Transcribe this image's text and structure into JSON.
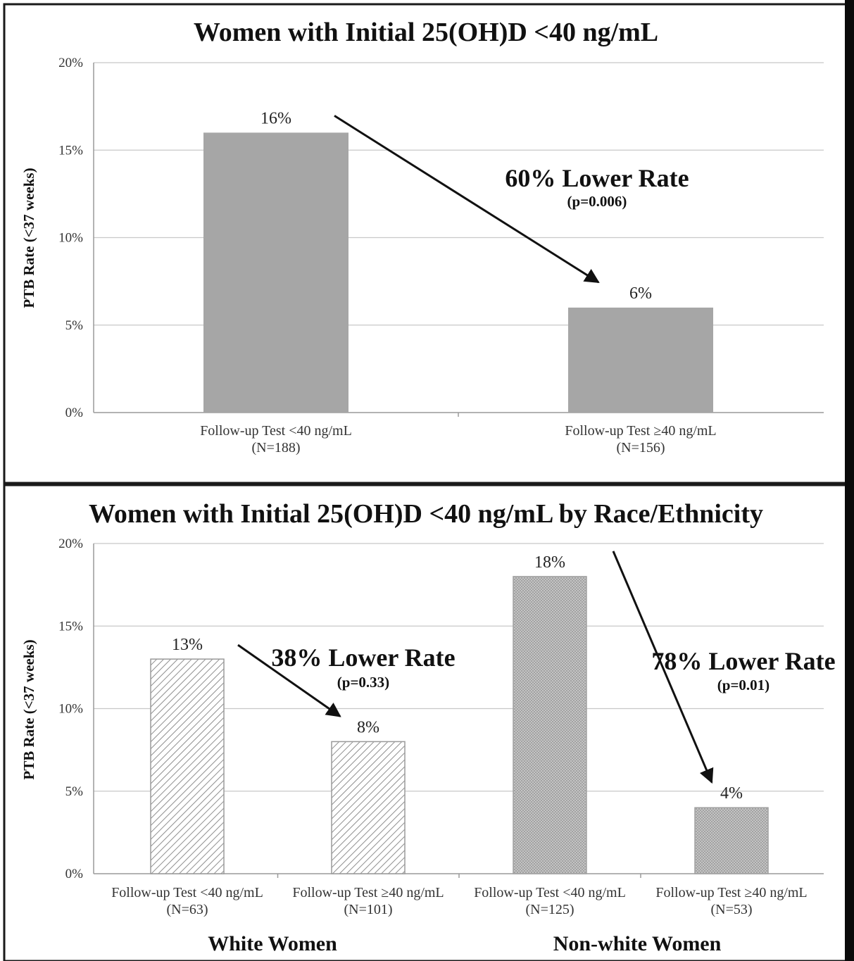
{
  "colors": {
    "solid": "#a6a6a6",
    "hatch": "#8f8f8f",
    "dots": "#9b9b9b"
  },
  "chart_data": [
    {
      "type": "bar",
      "title": "Women with Initial 25(OH)D <40 ng/mL",
      "ylabel": "PTB Rate (<37 weeks)",
      "ylim": [
        0,
        20
      ],
      "yticks": [
        "0%",
        "5%",
        "10%",
        "15%",
        "20%"
      ],
      "grid": true,
      "categories": [
        [
          "Follow-up Test <40 ng/mL",
          "(N=188)"
        ],
        [
          "Follow-up Test ≥40 ng/mL",
          "(N=156)"
        ]
      ],
      "values": [
        16,
        6
      ],
      "data_labels": [
        "16%",
        "6%"
      ],
      "annotations": [
        {
          "text": "60% Lower Rate",
          "subtext": "(p=0.006)",
          "from_index": 0,
          "to_index": 1
        }
      ]
    },
    {
      "type": "bar",
      "title": "Women with Initial 25(OH)D <40 ng/mL by Race/Ethnicity",
      "ylabel": "PTB Rate (<37 weeks)",
      "ylim": [
        0,
        20
      ],
      "yticks": [
        "0%",
        "5%",
        "10%",
        "15%",
        "20%"
      ],
      "grid": true,
      "categories": [
        [
          "Follow-up Test <40 ng/mL",
          "(N=63)"
        ],
        [
          "Follow-up Test ≥40 ng/mL",
          "(N=101)"
        ],
        [
          "Follow-up Test <40 ng/mL",
          "(N=125)"
        ],
        [
          "Follow-up Test ≥40 ng/mL",
          "(N=53)"
        ]
      ],
      "groups": [
        "White Women",
        "Non-white Women"
      ],
      "values": [
        13,
        8,
        18,
        4
      ],
      "data_labels": [
        "13%",
        "8%",
        "18%",
        "4%"
      ],
      "annotations": [
        {
          "text": "38% Lower Rate",
          "subtext": "(p=0.33)",
          "from_index": 0,
          "to_index": 1
        },
        {
          "text": "78% Lower Rate",
          "subtext": "(p=0.01)",
          "from_index": 2,
          "to_index": 3
        }
      ]
    }
  ]
}
